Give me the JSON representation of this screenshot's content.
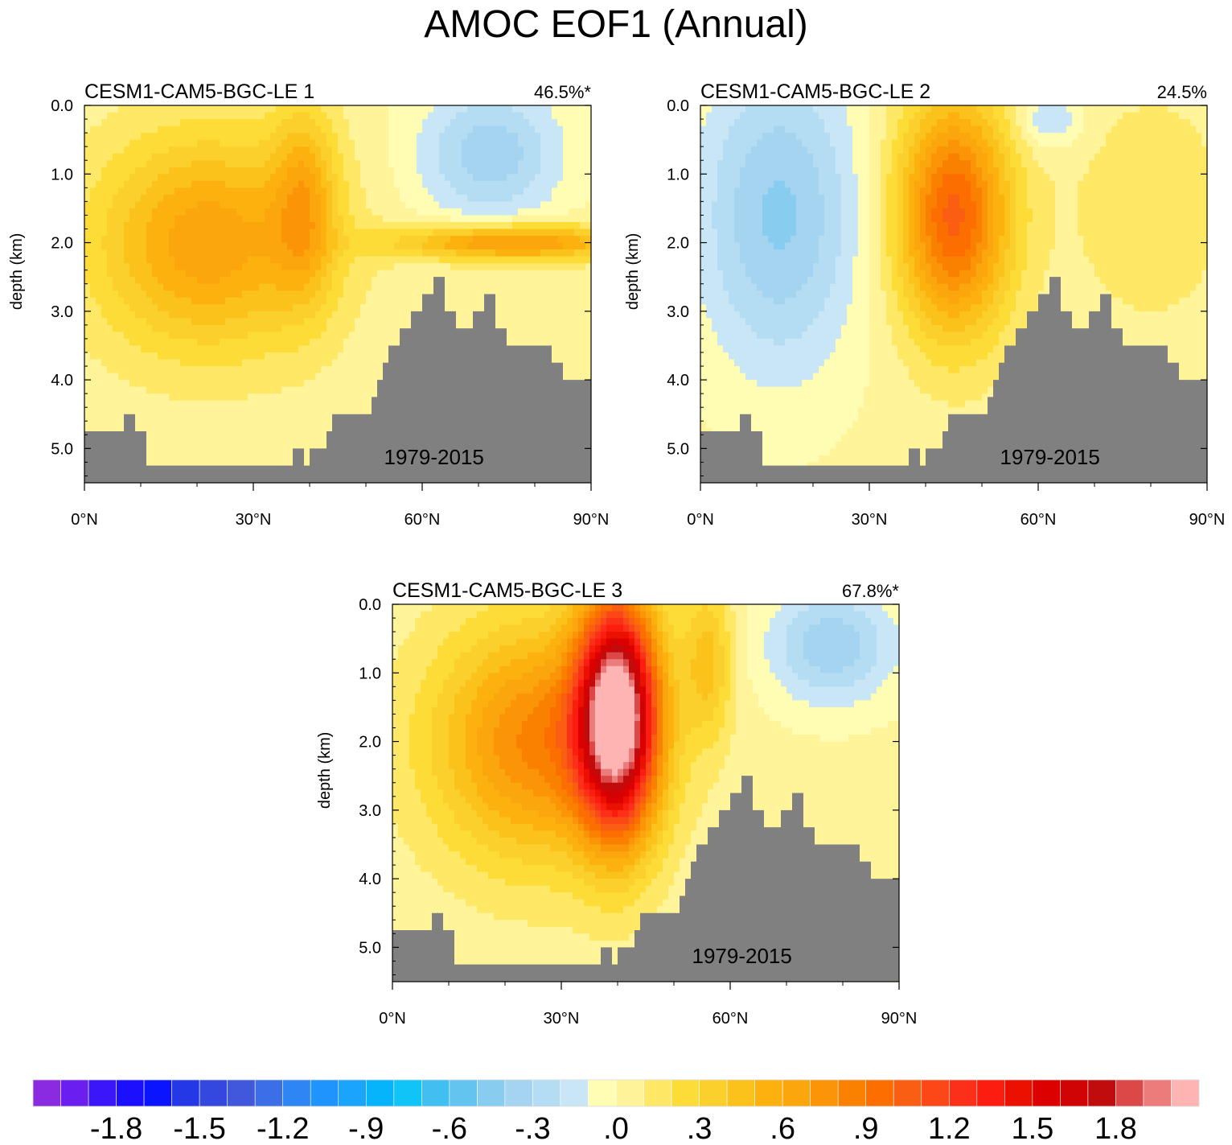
{
  "chart_data": {
    "type": "heatmap",
    "title": "AMOC EOF1 (Annual)",
    "xlabel": "",
    "ylabel": "depth (km)",
    "xlim": [
      0,
      90
    ],
    "ylim": [
      0,
      5.5
    ],
    "x_ticks": [
      {
        "value": 0,
        "label": "0°N"
      },
      {
        "value": 30,
        "label": "30°N"
      },
      {
        "value": 60,
        "label": "60°N"
      },
      {
        "value": 90,
        "label": "90°N"
      }
    ],
    "y_ticks": [
      {
        "value": 0,
        "label": "0.0"
      },
      {
        "value": 1,
        "label": "1.0"
      },
      {
        "value": 2,
        "label": "2.0"
      },
      {
        "value": 3,
        "label": "3.0"
      },
      {
        "value": 4,
        "label": "4.0"
      },
      {
        "value": 5,
        "label": "5.0"
      }
    ],
    "panels": [
      {
        "name": "CESM1-CAM5-BGC-LE 1",
        "variance": "46.5%*",
        "period": "1979-2015",
        "centers": [
          {
            "lat": 22,
            "depth": 2.0,
            "amp": 0.65,
            "sx": 14,
            "sd": 1.1
          },
          {
            "lat": 39,
            "depth": 1.4,
            "amp": 0.45,
            "sx": 4,
            "sd": 1.0
          },
          {
            "lat": 72,
            "depth": 0.7,
            "amp": -0.4,
            "sx": 9,
            "sd": 0.7
          },
          {
            "lat": 76,
            "depth": 2.0,
            "amp": 0.75,
            "sx": 14,
            "sd": 0.18
          }
        ]
      },
      {
        "name": "CESM1-CAM5-BGC-LE 2",
        "variance": "24.5%",
        "period": "1979-2015",
        "centers": [
          {
            "lat": 45,
            "depth": 1.6,
            "amp": 1.0,
            "sx": 7,
            "sd": 1.2
          },
          {
            "lat": 14,
            "depth": 1.6,
            "amp": -0.45,
            "sx": 10,
            "sd": 1.6
          },
          {
            "lat": 62,
            "depth": 0.2,
            "amp": -0.25,
            "sx": 4,
            "sd": 0.3
          },
          {
            "lat": 80,
            "depth": 1.5,
            "amp": 0.15,
            "sx": 10,
            "sd": 1.2
          }
        ]
      },
      {
        "name": "CESM1-CAM5-BGC-LE 3",
        "variance": "67.8%*",
        "period": "1979-2015",
        "centers": [
          {
            "lat": 40,
            "depth": 1.6,
            "amp": 2.0,
            "sx": 5,
            "sd": 1.2
          },
          {
            "lat": 26,
            "depth": 2.0,
            "amp": 0.8,
            "sx": 13,
            "sd": 1.2
          },
          {
            "lat": 56,
            "depth": 0.8,
            "amp": 0.4,
            "sx": 3,
            "sd": 0.8
          },
          {
            "lat": 78,
            "depth": 0.6,
            "amp": -0.4,
            "sx": 8,
            "sd": 0.6
          }
        ]
      }
    ],
    "bathymetry": [
      {
        "lat": 0,
        "depth": 4.75
      },
      {
        "lat": 5,
        "depth": 4.75
      },
      {
        "lat": 7,
        "depth": 4.5
      },
      {
        "lat": 9,
        "depth": 4.75
      },
      {
        "lat": 11,
        "depth": 5.25
      },
      {
        "lat": 35,
        "depth": 5.25
      },
      {
        "lat": 37,
        "depth": 5.0
      },
      {
        "lat": 39,
        "depth": 5.25
      },
      {
        "lat": 40,
        "depth": 5.0
      },
      {
        "lat": 43,
        "depth": 4.75
      },
      {
        "lat": 44,
        "depth": 4.5
      },
      {
        "lat": 50,
        "depth": 4.5
      },
      {
        "lat": 51,
        "depth": 4.25
      },
      {
        "lat": 52,
        "depth": 4.0
      },
      {
        "lat": 53,
        "depth": 3.75
      },
      {
        "lat": 54,
        "depth": 3.5
      },
      {
        "lat": 56,
        "depth": 3.25
      },
      {
        "lat": 58,
        "depth": 3.0
      },
      {
        "lat": 60,
        "depth": 2.75
      },
      {
        "lat": 62,
        "depth": 2.5
      },
      {
        "lat": 64,
        "depth": 3.0
      },
      {
        "lat": 66,
        "depth": 3.25
      },
      {
        "lat": 69,
        "depth": 3.0
      },
      {
        "lat": 71,
        "depth": 2.75
      },
      {
        "lat": 73,
        "depth": 3.25
      },
      {
        "lat": 75,
        "depth": 3.5
      },
      {
        "lat": 83,
        "depth": 3.75
      },
      {
        "lat": 85,
        "depth": 4.0
      },
      {
        "lat": 90,
        "depth": 4.0
      }
    ],
    "colorbar": {
      "levels": [
        -2.1,
        -2.0,
        -1.9,
        -1.8,
        -1.7,
        -1.6,
        -1.5,
        -1.4,
        -1.3,
        -1.2,
        -1.1,
        -1.0,
        -0.9,
        -0.8,
        -0.7,
        -0.6,
        -0.5,
        -0.4,
        -0.3,
        -0.2,
        -0.1,
        0.0,
        0.1,
        0.2,
        0.3,
        0.4,
        0.5,
        0.6,
        0.7,
        0.8,
        0.9,
        1.0,
        1.1,
        1.2,
        1.3,
        1.4,
        1.5,
        1.6,
        1.7,
        1.8,
        1.9,
        2.0,
        2.1
      ],
      "colors": [
        "#8a2be2",
        "#6a1ef0",
        "#3a16f8",
        "#1a10fe",
        "#0a14ff",
        "#2438e8",
        "#3448e0",
        "#4058dc",
        "#3c6ee8",
        "#2e86f4",
        "#1e94fc",
        "#1aa4fc",
        "#06b4fc",
        "#10c4f8",
        "#40c0f0",
        "#64c4f0",
        "#88ccf0",
        "#a4d4f0",
        "#b4dcf2",
        "#c8e6f6",
        "#fffcb4",
        "#fff49a",
        "#ffe866",
        "#fedc38",
        "#fcd02c",
        "#fcc21c",
        "#fcb10e",
        "#fba60c",
        "#fb9406",
        "#fa8000",
        "#fc6e00",
        "#fa5e12",
        "#fb4816",
        "#fc3018",
        "#fc1c10",
        "#ec1000",
        "#dc0000",
        "#d00404",
        "#c00c0c",
        "#dc4848",
        "#ec7c7c",
        "#ffb4b4"
      ],
      "labels": [
        "-1.8",
        "-1.5",
        "-1.2",
        "-.9",
        "-.6",
        "-.3",
        ".0",
        ".3",
        ".6",
        ".9",
        "1.2",
        "1.5",
        "1.8"
      ]
    }
  },
  "colors": {
    "land": "#808080",
    "contour": "#000000"
  }
}
